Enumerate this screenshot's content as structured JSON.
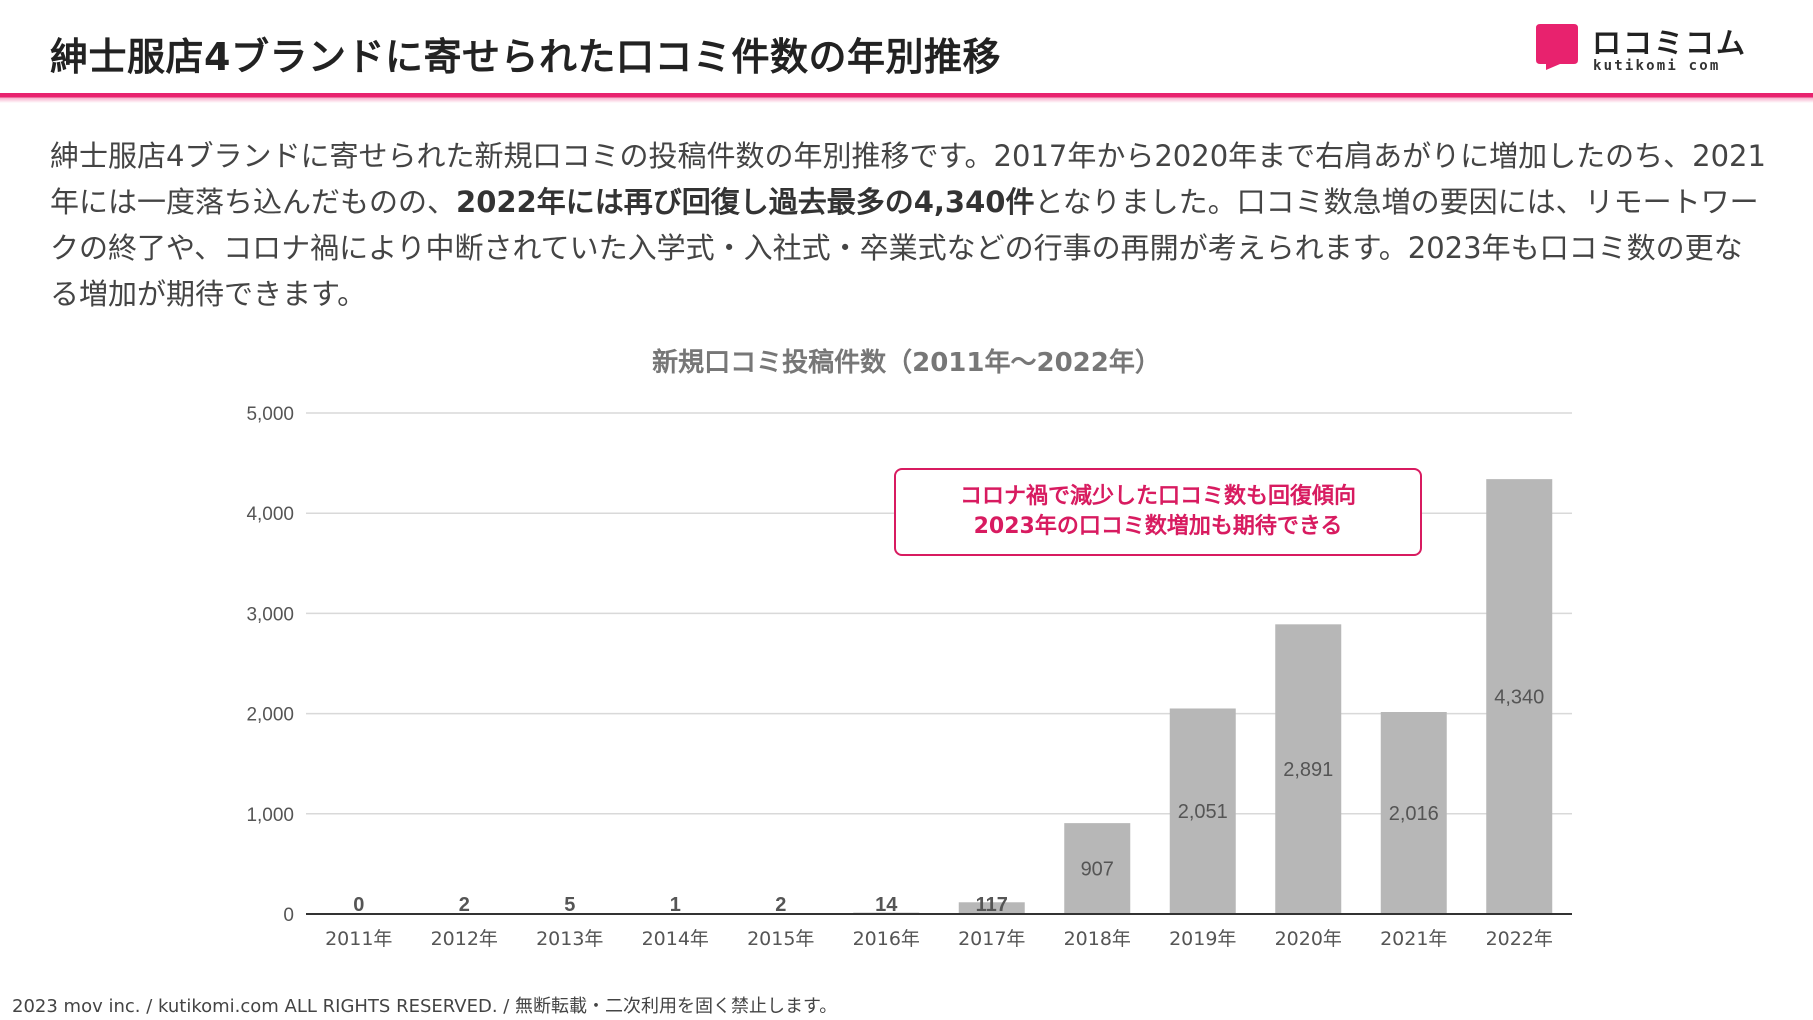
{
  "header": {
    "title": "紳士服店4ブランドに寄せられた口コミ件数の年別推移",
    "logo_text": "ロコミコム",
    "logo_sub": "kutikomi com"
  },
  "intro": {
    "text_before": "紳士服店4ブランドに寄せられた新規口コミの投稿件数の年別推移です。2017年から2020年まで右肩あがりに増加したのち、2021年には一度落ち込んだものの、",
    "text_bold": "2022年には再び回復し過去最多の4,340件",
    "text_after": "となりました。口コミ数急増の要因には、リモートワークの終了や、コロナ禍により中断されていた入学式・入社式・卒業式などの行事の再開が考えられます。2023年も口コミ数の更なる増加が期待できます。"
  },
  "callout": {
    "line1": "コロナ禍で減少した口コミ数も回復傾向",
    "line2": "2023年の口コミ数増加も期待できる",
    "color": "#d81b60"
  },
  "footer": {
    "text": "2023 mov inc. / kutikomi.com ALL RIGHTS RESERVED. / 無断転載・二次利用を固く禁止します。"
  },
  "colors": {
    "accent": "#e8226e",
    "bar": "#b7b7b7"
  },
  "chart_data": {
    "type": "bar",
    "title": "新規口コミ投稿件数（2011年～2022年）",
    "categories": [
      "2011年",
      "2012年",
      "2013年",
      "2014年",
      "2015年",
      "2016年",
      "2017年",
      "2018年",
      "2019年",
      "2020年",
      "2021年",
      "2022年"
    ],
    "values": [
      0,
      2,
      5,
      1,
      2,
      14,
      117,
      907,
      2051,
      2891,
      2016,
      4340
    ],
    "data_labels": [
      "0",
      "2",
      "5",
      "1",
      "2",
      "14",
      "117",
      "907",
      "2,051",
      "2,891",
      "2,016",
      "4,340"
    ],
    "yticks": [
      0,
      1000,
      2000,
      3000,
      4000,
      5000
    ],
    "ytick_labels": [
      "0",
      "1,000",
      "2,000",
      "3,000",
      "4,000",
      "5,000"
    ],
    "ylim": [
      0,
      5000
    ],
    "xlabel": "",
    "ylabel": "",
    "grid": true,
    "legend": "none"
  }
}
